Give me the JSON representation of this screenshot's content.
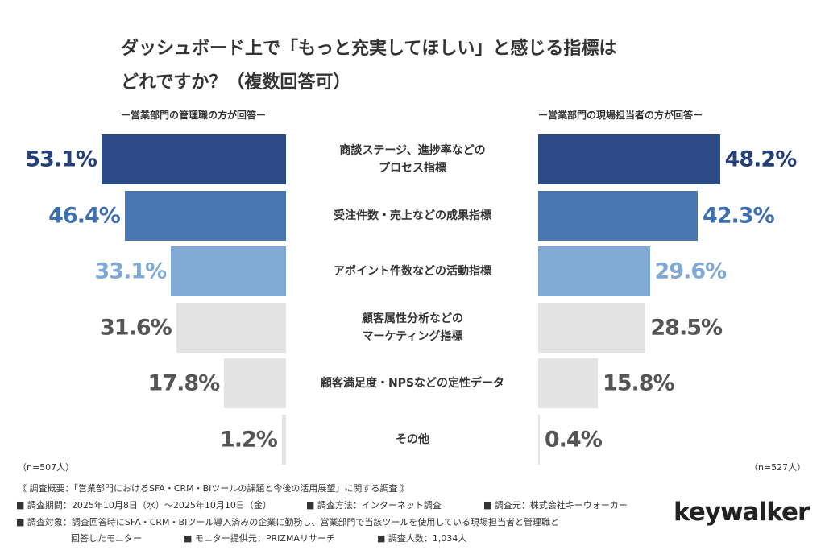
{
  "chart_data": {
    "type": "butterfly",
    "title": "ダッシュボード上で「もっと充実してほしい」と感じる指標は\nどれですか？（複数回答可）",
    "categories": [
      "商談ステージ、進捗率などの\nプロセス指標",
      "受注件数・売上などの成果指標",
      "アポイント件数などの活動指標",
      "顧客属性分析などの\nマーケティング指標",
      "顧客満足度・NPSなどの定性データ",
      "その他"
    ],
    "colors": [
      "#2b4a86",
      "#4a77b4",
      "#80a9d3",
      "#e3e3e3",
      "#e3e3e3",
      "#e3e3e3"
    ],
    "label_colors": [
      "#24407a",
      "#3f6fae",
      "#80a9d3",
      "#555555",
      "#555555",
      "#555555"
    ],
    "series": [
      {
        "name": "ー営業部門の管理職の方が回答ー",
        "note": "（n=507人）",
        "xlim": [
          0,
          54
        ],
        "values": [
          53.1,
          46.4,
          33.1,
          31.6,
          17.8,
          1.2
        ],
        "value_labels": [
          "53.1%",
          "46.4%",
          "33.1%",
          "31.6%",
          "17.8%",
          "1.2%"
        ]
      },
      {
        "name": "ー営業部門の現場担当者の方が回答ー",
        "note": "（n=527人）",
        "xlim": [
          0,
          48.5
        ],
        "values": [
          48.2,
          42.3,
          29.6,
          28.5,
          15.8,
          0.4
        ],
        "value_labels": [
          "48.2%",
          "42.3%",
          "29.6%",
          "28.5%",
          "15.8%",
          "0.4%"
        ]
      }
    ]
  },
  "footer": {
    "lines": [
      [
        "《 調査概要：「営業部門におけるSFA・CRM・BIツールの課題と今後の活用展望」に関する調査 》"
      ],
      [
        "■ 調査期間：2025年10月8日（水）〜2025年10月10日（金）",
        "■ 調査方法：インターネット調査",
        "■ 調査元：株式会社キーウォーカー"
      ],
      [
        "■ 調査対象：調査回答時にSFA・CRM・BIツール導入済みの企業に勤務し、営業部門で当該ツールを使用している現場担当者と管理職と"
      ],
      [
        "回答したモニター",
        "■ モニター提供元：PRIZMAリサーチ",
        "■ 調査人数：1,034人"
      ]
    ],
    "logo": "keywalker"
  }
}
